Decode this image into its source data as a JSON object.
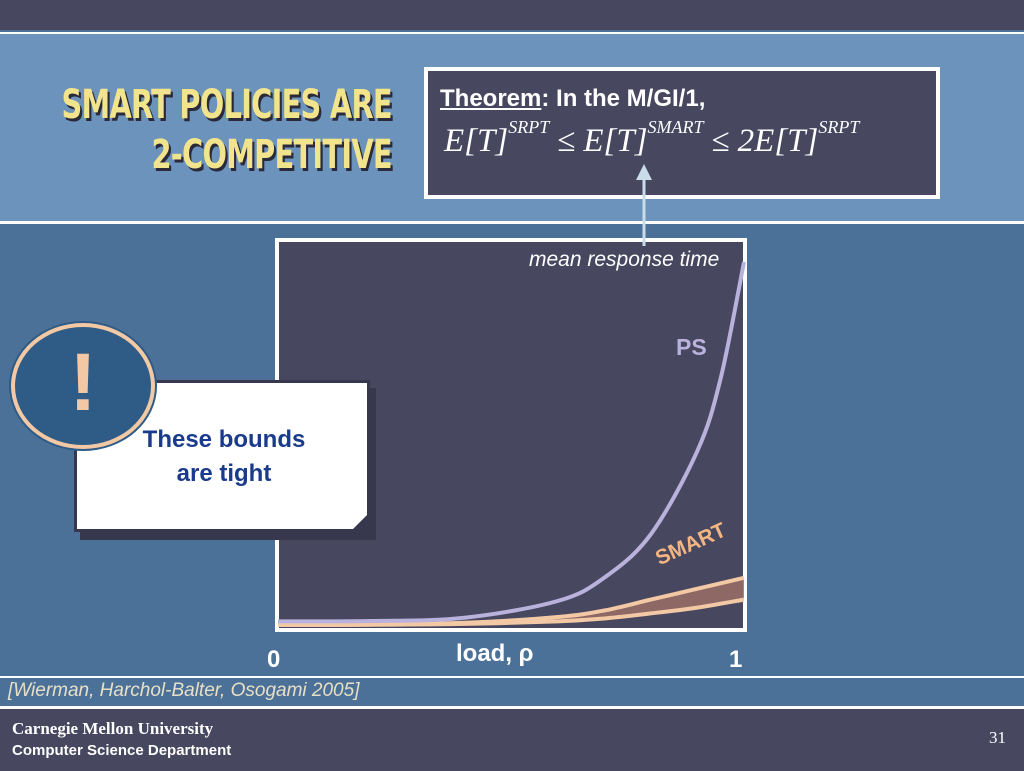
{
  "slide": {
    "title_line1": "SMART POLICIES ARE",
    "title_line2": "2-COMPETITIVE",
    "theorem": {
      "label": "Theorem",
      "rest": ": In the M/GI/1,",
      "formula": {
        "left": "E[T]",
        "left_sup": "SRPT",
        "op1": "≤",
        "middle": "E[T]",
        "middle_sup": "SMART",
        "op2": "≤",
        "right": "2E[T]",
        "right_sup": "SRPT"
      }
    },
    "mean_response_label": "mean response time",
    "callout": {
      "icon": "!",
      "line1": "These bounds",
      "line2": "are tight"
    },
    "citation": "[Wierman, Harchol-Balter, Osogami 2005]",
    "footer": {
      "university": "Carnegie Mellon University",
      "department": "Computer Science Department",
      "page": "31"
    }
  },
  "colors": {
    "header_band": "#6c93bb",
    "background": "#4b7199",
    "dark_panel": "#474760",
    "title": "#f2e48c",
    "ps_curve": "#b9b2dc",
    "smart_band": "#f3c8a4"
  },
  "chart_data": {
    "type": "line",
    "xlabel": "load, ρ",
    "x_ticks": [
      "0",
      "1"
    ],
    "xlim": [
      0,
      1
    ],
    "series": [
      {
        "name": "PS",
        "x": [
          0,
          0.2,
          0.4,
          0.6,
          0.7,
          0.8,
          0.9,
          0.95,
          1.0
        ],
        "values": [
          0.01,
          0.011,
          0.02,
          0.066,
          0.13,
          0.25,
          0.48,
          0.68,
          1.0
        ]
      },
      {
        "name": "SMART",
        "x": [
          0,
          0.2,
          0.4,
          0.6,
          0.7,
          0.8,
          0.9,
          1.0
        ],
        "values": [
          0.0,
          0.001,
          0.006,
          0.022,
          0.04,
          0.07,
          0.1,
          0.13
        ]
      },
      {
        "name": "SMART",
        "x": [
          0,
          0.2,
          0.4,
          0.6,
          0.7,
          0.8,
          0.9,
          1.0
        ],
        "values": [
          0.0,
          0.0005,
          0.003,
          0.01,
          0.018,
          0.032,
          0.048,
          0.07
        ]
      }
    ],
    "smart_label": "SMART",
    "ps_label": "PS"
  }
}
